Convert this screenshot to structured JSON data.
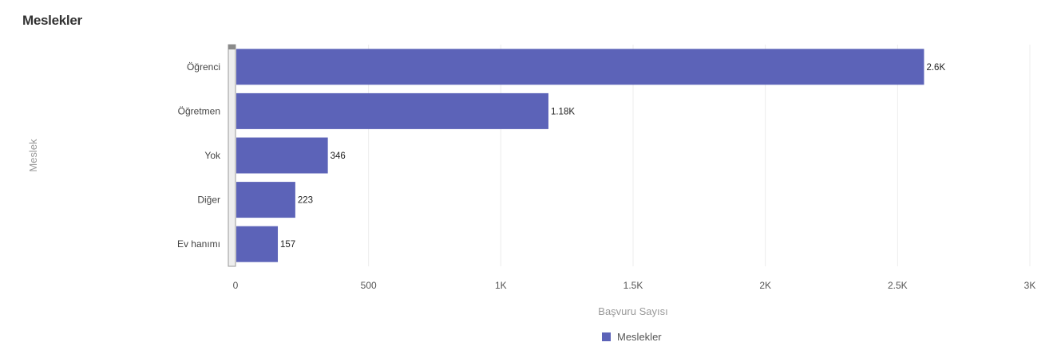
{
  "chart_data": {
    "type": "bar",
    "orientation": "horizontal",
    "title": "Meslekler",
    "categories": [
      "Öğrenci",
      "Öğretmen",
      "Yok",
      "Diğer",
      "Ev hanımı"
    ],
    "series": [
      {
        "name": "Meslekler",
        "values": [
          2600,
          1180,
          346,
          223,
          157
        ],
        "labels": [
          "2.6K",
          "1.18K",
          "346",
          "223",
          "157"
        ],
        "color": "#5c63b8"
      }
    ],
    "xlabel": "Başvuru Sayısı",
    "ylabel": "Meslek",
    "xlim": [
      0,
      3000
    ],
    "xticks": [
      {
        "value": 0,
        "label": "0"
      },
      {
        "value": 500,
        "label": "500"
      },
      {
        "value": 1000,
        "label": "1K"
      },
      {
        "value": 1500,
        "label": "1.5K"
      },
      {
        "value": 2000,
        "label": "2K"
      },
      {
        "value": 2500,
        "label": "2.5K"
      },
      {
        "value": 3000,
        "label": "3K"
      }
    ],
    "grid": true,
    "legend_position": "bottom-center"
  }
}
